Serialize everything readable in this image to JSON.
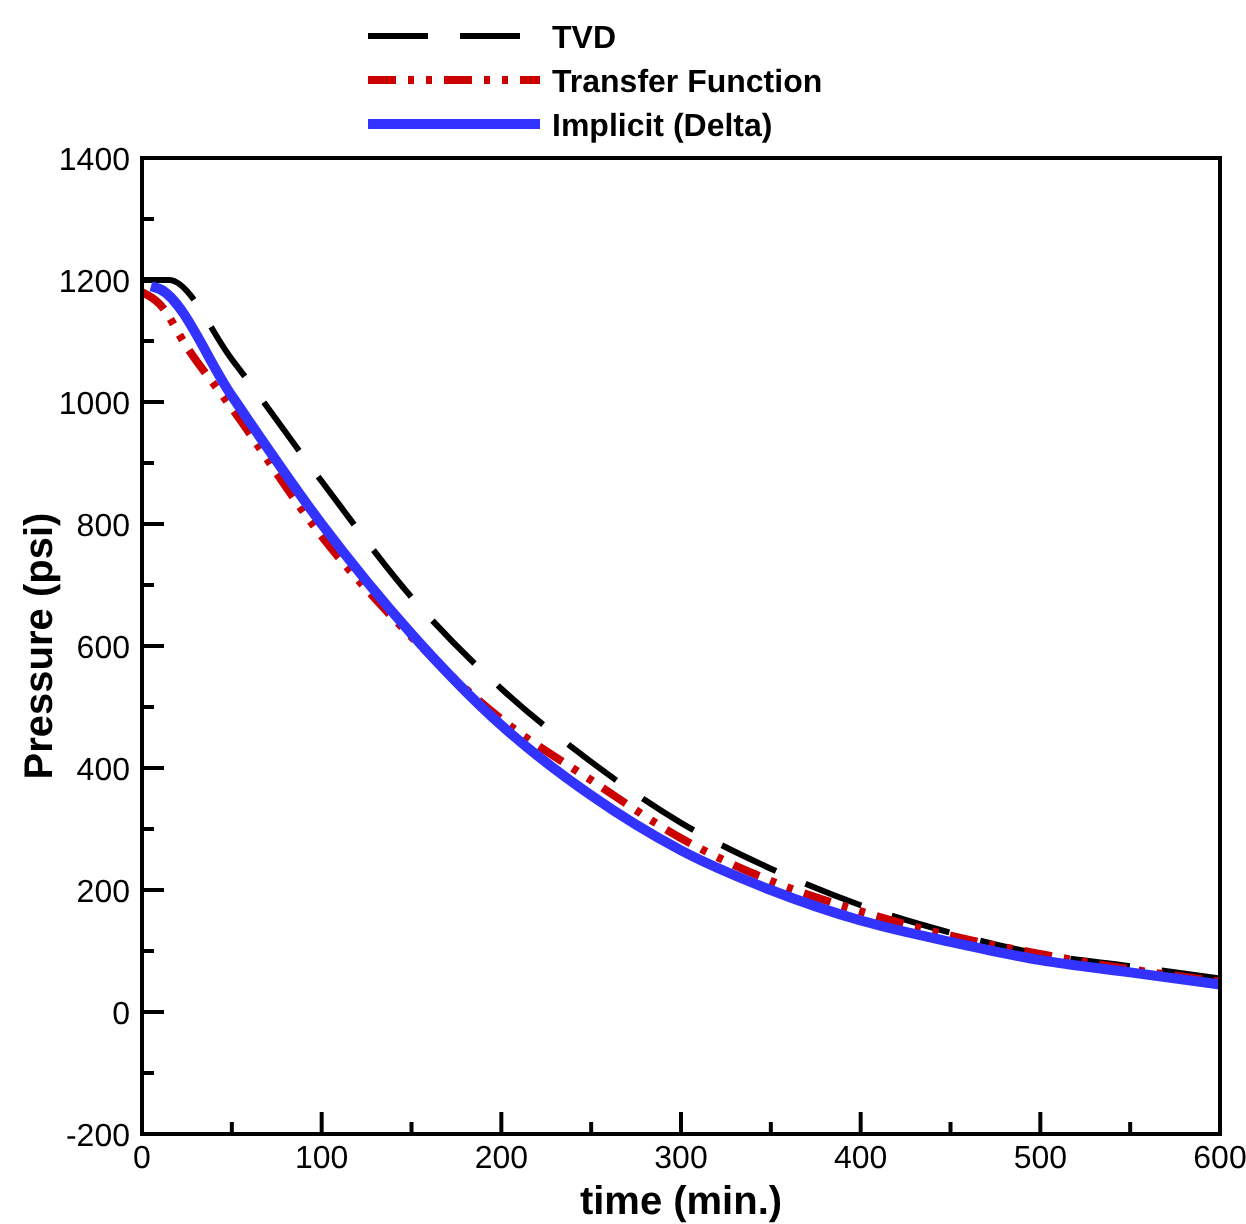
{
  "chart_data": {
    "type": "line",
    "xlabel": "time (min.)",
    "ylabel": "Pressure (psi)",
    "xlim": [
      0,
      600
    ],
    "ylim": [
      -200,
      1400
    ],
    "xticks": [
      0,
      {
        "value": 50,
        "label": null
      },
      100,
      {
        "value": 150,
        "label": null
      },
      200,
      {
        "value": 250,
        "label": null
      },
      300,
      {
        "value": 350,
        "label": null
      },
      400,
      {
        "value": 450,
        "label": null
      },
      500,
      {
        "value": 550,
        "label": null
      },
      600
    ],
    "yticks": [
      -200,
      {
        "value": -100,
        "label": null
      },
      0,
      {
        "value": 100,
        "label": null
      },
      200,
      {
        "value": 300,
        "label": null
      },
      400,
      {
        "value": 500,
        "label": null
      },
      600,
      {
        "value": 700,
        "label": null
      },
      800,
      {
        "value": 900,
        "label": null
      },
      1000,
      {
        "value": 1100,
        "label": null
      },
      1200,
      {
        "value": 1300,
        "label": null
      },
      1400
    ],
    "legend": "top",
    "series": [
      {
        "name": "TVD",
        "color": "#000000",
        "line_style": "dashed",
        "x": [
          0,
          15,
          50,
          100,
          150,
          200,
          250,
          300,
          350,
          400,
          450,
          500,
          550,
          600
        ],
        "values": [
          1200,
          1200,
          1070,
          870,
          680,
          530,
          410,
          310,
          235,
          175,
          130,
          95,
          75,
          55
        ]
      },
      {
        "name": "Transfer Function",
        "color": "#cc0000",
        "line_style": "dotted",
        "x": [
          0,
          10,
          25,
          50,
          100,
          150,
          200,
          250,
          300,
          350,
          400,
          450,
          500,
          550,
          600
        ],
        "values": [
          1180,
          1160,
          1090,
          990,
          780,
          615,
          480,
          380,
          285,
          215,
          165,
          125,
          95,
          70,
          50
        ]
      },
      {
        "name": "Implicit (Delta)",
        "color": "#3333ff",
        "line_style": "solid",
        "x": [
          5,
          10,
          50,
          100,
          150,
          200,
          250,
          300,
          350,
          400,
          450,
          500,
          550,
          600
        ],
        "values": [
          1190,
          1185,
          1010,
          800,
          620,
          470,
          355,
          265,
          200,
          150,
          115,
          85,
          65,
          45
        ]
      }
    ]
  }
}
